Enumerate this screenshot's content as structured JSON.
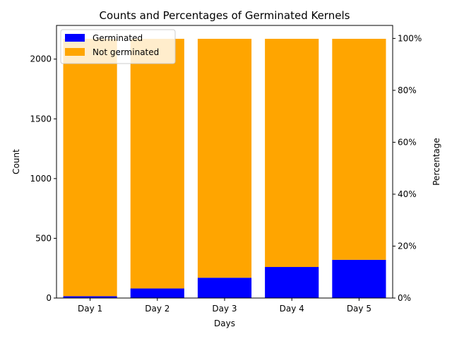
{
  "chart_data": {
    "type": "bar",
    "stacked": true,
    "title": "Counts and Percentages of Germinated Kernels",
    "xlabel": "Days",
    "ylabel": "Count",
    "ylabel_right": "Percentage",
    "categories": [
      "Day 1",
      "Day 2",
      "Day 3",
      "Day 4",
      "Day 5"
    ],
    "series": [
      {
        "name": "Germinated",
        "color": "#0000ff",
        "values": [
          15,
          80,
          170,
          260,
          320
        ]
      },
      {
        "name": "Not germinated",
        "color": "#ffa500",
        "values": [
          2155,
          2090,
          2000,
          1910,
          1850
        ]
      }
    ],
    "ylim": [
      0,
      2282
    ],
    "yticks": [
      0,
      500,
      1000,
      1500,
      2000
    ],
    "ytick_labels": [
      "0",
      "500",
      "1000",
      "1500",
      "2000"
    ],
    "ylim_right": [
      0,
      105
    ],
    "yticks_right": [
      0,
      20,
      40,
      60,
      80,
      100
    ],
    "ytick_labels_right": [
      "0%",
      "20%",
      "40%",
      "60%",
      "80%",
      "100%"
    ],
    "legend_position": "top-left",
    "grid": false
  }
}
